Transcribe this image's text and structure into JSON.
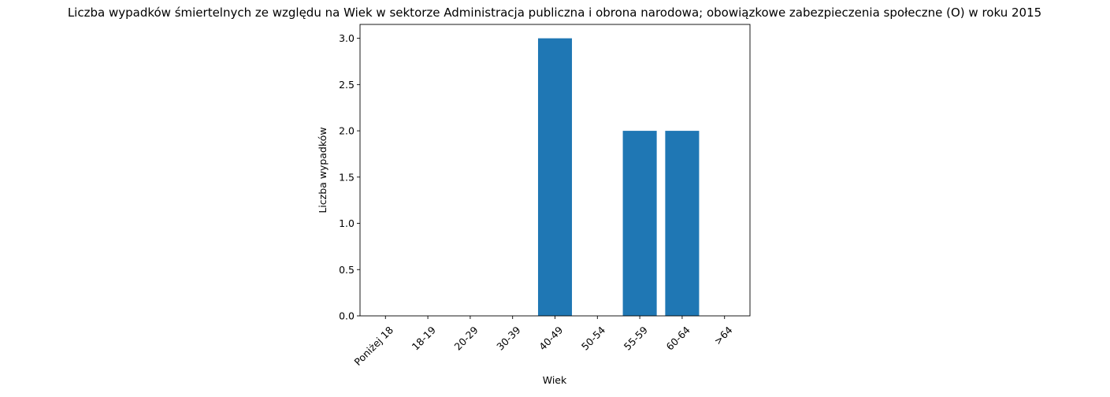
{
  "chart_data": {
    "type": "bar",
    "title": "Liczba wypadków śmiertelnych ze względu na Wiek w sektorze Administracja publiczna i obrona narodowa; obowiązkowe zabezpieczenia społeczne  (O)  w roku 2015",
    "xlabel": "Wiek",
    "ylabel": "Liczba wypadków",
    "categories": [
      "Poniżej 18",
      "18-19",
      "20-29",
      "30-39",
      "40-49",
      "50-54",
      "55-59",
      "60-64",
      ">64"
    ],
    "values": [
      0,
      0,
      0,
      0,
      3,
      0,
      2,
      2,
      0
    ],
    "ylim": [
      0,
      3.15
    ],
    "yticks": [
      0.0,
      0.5,
      1.0,
      1.5,
      2.0,
      2.5,
      3.0
    ],
    "ytick_labels": [
      "0.0",
      "0.5",
      "1.0",
      "1.5",
      "2.0",
      "2.5",
      "3.0"
    ],
    "bar_color": "#1f77b4",
    "grid": false,
    "legend": "none"
  }
}
